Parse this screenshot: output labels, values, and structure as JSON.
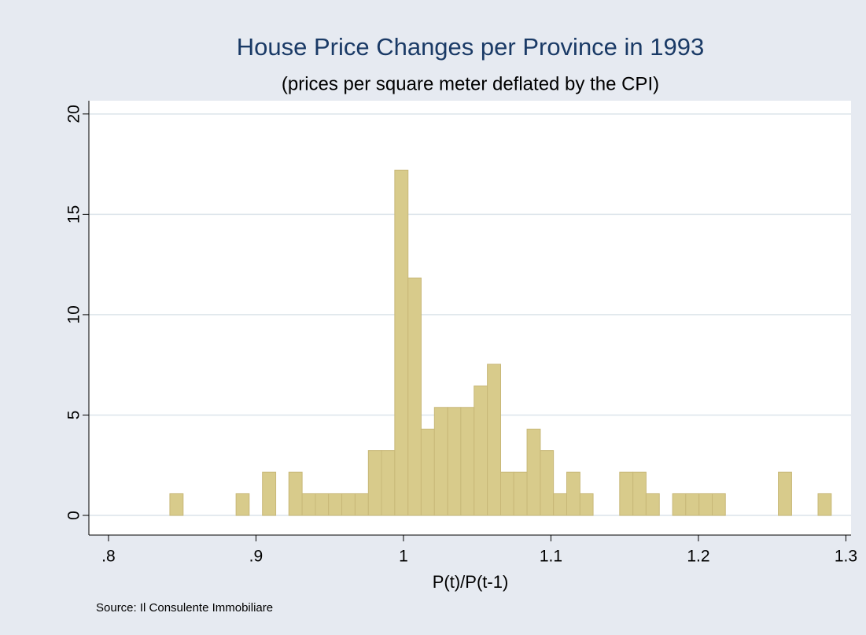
{
  "chart_data": {
    "type": "histogram",
    "title": "House Price Changes per Province in 1993",
    "subtitle": "(prices per square meter deflated by the CPI)",
    "x_label": "P(t)/P(t-1)",
    "note": "Source: Il Consulente Immobiliare",
    "color": "#d8cb8b",
    "bins": [
      0.8416,
      0.8506,
      0.8595,
      0.8685,
      0.8775,
      0.8865,
      0.8954,
      0.9044,
      0.9134,
      0.9223,
      0.9313,
      0.9403,
      0.9492,
      0.9582,
      0.9672,
      0.9762,
      0.9851,
      0.9941,
      1.0031,
      1.012,
      1.021,
      1.03,
      1.0389,
      1.0479,
      1.0569,
      1.0659,
      1.0748,
      1.0838,
      1.0928,
      1.1017,
      1.1107,
      1.1197,
      1.1286,
      1.1376,
      1.1466,
      1.1556,
      1.1645,
      1.1735,
      1.1825,
      1.1914,
      1.2004,
      1.2094,
      1.2183,
      1.2273,
      1.2363,
      1.2453,
      1.2542,
      1.2632,
      1.2722,
      1.2811,
      1.2901
    ],
    "values": [
      1.08,
      0,
      0,
      0,
      0,
      1.08,
      0,
      2.15,
      0,
      2.15,
      1.08,
      1.08,
      1.08,
      1.08,
      1.08,
      3.23,
      3.23,
      17.2,
      11.83,
      4.3,
      5.38,
      5.38,
      5.38,
      6.45,
      7.53,
      2.15,
      2.15,
      4.3,
      3.23,
      1.08,
      2.15,
      1.08,
      0,
      0,
      2.15,
      2.15,
      1.08,
      0,
      1.08,
      1.08,
      1.08,
      1.08,
      0,
      0,
      0,
      0,
      2.15,
      0,
      0,
      1.08
    ],
    "xlim": [
      0.7867,
      1.3035
    ],
    "xticks": [
      {
        "value": 0.8,
        "label": ".8"
      },
      {
        "value": 0.9,
        "label": ".9"
      },
      1,
      1.1,
      1.2,
      1.3
    ],
    "ylim": [
      -0.98,
      20.66
    ],
    "yticks": [
      0,
      5,
      10,
      15,
      20
    ],
    "grid": true
  }
}
